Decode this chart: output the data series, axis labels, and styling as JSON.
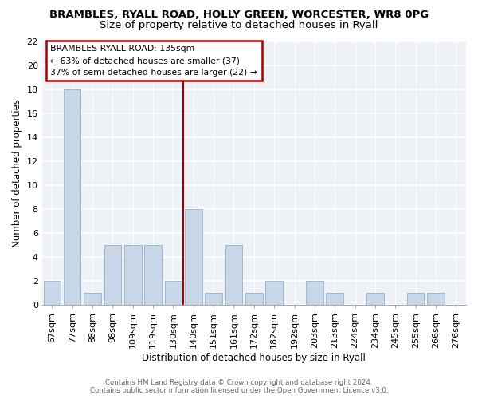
{
  "title": "BRAMBLES, RYALL ROAD, HOLLY GREEN, WORCESTER, WR8 0PG",
  "subtitle": "Size of property relative to detached houses in Ryall",
  "xlabel": "Distribution of detached houses by size in Ryall",
  "ylabel": "Number of detached properties",
  "categories": [
    "67sqm",
    "77sqm",
    "88sqm",
    "98sqm",
    "109sqm",
    "119sqm",
    "130sqm",
    "140sqm",
    "151sqm",
    "161sqm",
    "172sqm",
    "182sqm",
    "192sqm",
    "203sqm",
    "213sqm",
    "224sqm",
    "234sqm",
    "245sqm",
    "255sqm",
    "266sqm",
    "276sqm"
  ],
  "values": [
    2,
    18,
    1,
    5,
    5,
    5,
    2,
    8,
    1,
    5,
    1,
    2,
    0,
    2,
    1,
    0,
    1,
    0,
    1,
    1,
    0
  ],
  "bar_color": "#c8d8e8",
  "bar_edge_color": "#a0b8d0",
  "vline_x_idx": 6.5,
  "vline_color": "#aa0000",
  "ylim": [
    0,
    22
  ],
  "yticks": [
    0,
    2,
    4,
    6,
    8,
    10,
    12,
    14,
    16,
    18,
    20,
    22
  ],
  "annotation_title": "BRAMBLES RYALL ROAD: 135sqm",
  "annotation_line1": "← 63% of detached houses are smaller (37)",
  "annotation_line2": "37% of semi-detached houses are larger (22) →",
  "annotation_box_color": "#aa0000",
  "footer_line1": "Contains HM Land Registry data © Crown copyright and database right 2024.",
  "footer_line2": "Contains public sector information licensed under the Open Government Licence v3.0.",
  "background_color": "#eef2f6",
  "grid_color": "#ffffff",
  "title_fontsize": 9.5,
  "subtitle_fontsize": 9.5,
  "axis_label_fontsize": 8.5,
  "tick_fontsize": 8,
  "annotation_fontsize": 7.8
}
